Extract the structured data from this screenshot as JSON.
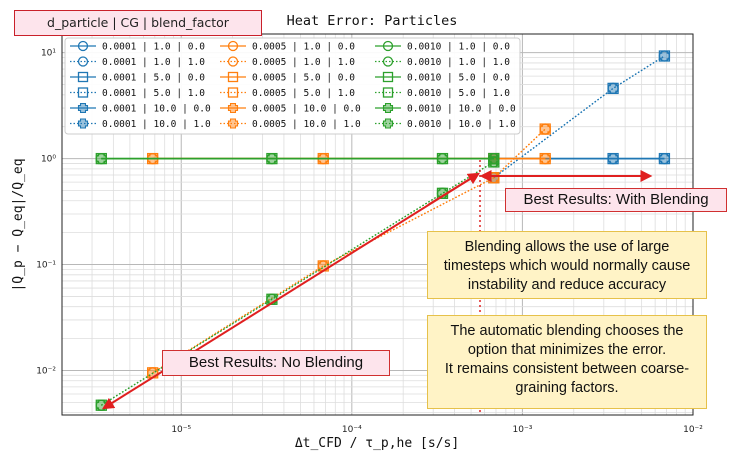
{
  "chart_data": {
    "type": "scatter",
    "title": "Heat Error: Particles",
    "xlabel": "Δt_CFD / τ_p,he  [s/s]",
    "ylabel": "|Q_p − Q_eq|/Q_eq",
    "xscale": "log",
    "yscale": "log",
    "xlim": [
      2e-06,
      0.01
    ],
    "ylim": [
      0.0038,
      15
    ],
    "x_ticks": [
      "10⁻⁵",
      "10⁻⁴",
      "10⁻³",
      "10⁻²"
    ],
    "y_ticks": [
      "10¹",
      "10⁰",
      "10⁻¹",
      "10⁻²"
    ],
    "grid": true,
    "legend_title": "d_particle | CG | blend_factor",
    "legend_placement": "top-left",
    "colors": {
      "d0001": "#1f77b4",
      "d0005": "#ff7f0e",
      "d0010": "#2ca02c"
    },
    "x": [
      3.4e-06,
      6.8e-06,
      3.4e-05,
      6.8e-05,
      0.00034,
      0.00068,
      0.0034,
      0.0068
    ],
    "series": [
      {
        "name": "0.0001 | 1.0 | 0.0",
        "color": "#1f77b4",
        "marker": "circle",
        "line": "solid",
        "x": [
          0.00068,
          0.0034,
          0.0068
        ],
        "values": [
          1,
          1,
          1
        ]
      },
      {
        "name": "0.0001 | 1.0 | 1.0",
        "color": "#1f77b4",
        "marker": "circle",
        "line": "dotted",
        "x": [
          0.00068,
          0.0034,
          0.0068
        ],
        "values": [
          0.66,
          4.6,
          9.3
        ]
      },
      {
        "name": "0.0001 | 5.0 | 0.0",
        "color": "#1f77b4",
        "marker": "square",
        "line": "solid",
        "x": [
          0.00068,
          0.0034,
          0.0068
        ],
        "values": [
          1,
          1,
          1
        ]
      },
      {
        "name": "0.0001 | 5.0 | 1.0",
        "color": "#1f77b4",
        "marker": "square",
        "line": "dotted",
        "x": [
          0.00068,
          0.0034,
          0.0068
        ],
        "values": [
          0.66,
          4.6,
          9.3
        ]
      },
      {
        "name": "0.0001 | 10.0 | 0.0",
        "color": "#1f77b4",
        "marker": "plus",
        "line": "solid",
        "x": [
          0.00068,
          0.0034,
          0.0068
        ],
        "values": [
          1,
          1,
          1
        ]
      },
      {
        "name": "0.0001 | 10.0 | 1.0",
        "color": "#1f77b4",
        "marker": "plus",
        "line": "dotted",
        "x": [
          0.00068,
          0.0034,
          0.0068
        ],
        "values": [
          0.66,
          4.6,
          9.3
        ]
      },
      {
        "name": "0.0005 | 1.0 | 0.0",
        "color": "#ff7f0e",
        "marker": "circle",
        "line": "solid",
        "x": [
          6.8e-06,
          6.8e-05,
          0.00068,
          0.00136
        ],
        "values": [
          1,
          1,
          1,
          1
        ]
      },
      {
        "name": "0.0005 | 1.0 | 1.0",
        "color": "#ff7f0e",
        "marker": "circle",
        "line": "dotted",
        "x": [
          6.8e-06,
          6.8e-05,
          0.00068,
          0.00136
        ],
        "values": [
          0.0095,
          0.097,
          0.66,
          1.9
        ]
      },
      {
        "name": "0.0005 | 5.0 | 0.0",
        "color": "#ff7f0e",
        "marker": "square",
        "line": "solid",
        "x": [
          6.8e-06,
          6.8e-05,
          0.00068,
          0.00136
        ],
        "values": [
          1,
          1,
          1,
          1
        ]
      },
      {
        "name": "0.0005 | 5.0 | 1.0",
        "color": "#ff7f0e",
        "marker": "square",
        "line": "dotted",
        "x": [
          6.8e-06,
          6.8e-05,
          0.00068,
          0.00136
        ],
        "values": [
          0.0095,
          0.097,
          0.66,
          1.9
        ]
      },
      {
        "name": "0.0005 | 10.0 | 0.0",
        "color": "#ff7f0e",
        "marker": "plus",
        "line": "solid",
        "x": [
          6.8e-06,
          6.8e-05,
          0.00068,
          0.00136
        ],
        "values": [
          1,
          1,
          1,
          1
        ]
      },
      {
        "name": "0.0005 | 10.0 | 1.0",
        "color": "#ff7f0e",
        "marker": "plus",
        "line": "dotted",
        "x": [
          6.8e-06,
          6.8e-05,
          0.00068,
          0.00136
        ],
        "values": [
          0.0095,
          0.097,
          0.66,
          1.9
        ]
      },
      {
        "name": "0.0010 | 1.0 | 0.0",
        "color": "#2ca02c",
        "marker": "circle",
        "line": "solid",
        "x": [
          3.4e-06,
          3.4e-05,
          0.00034,
          0.00068
        ],
        "values": [
          1,
          1,
          1,
          1
        ]
      },
      {
        "name": "0.0010 | 1.0 | 1.0",
        "color": "#2ca02c",
        "marker": "circle",
        "line": "dotted",
        "x": [
          3.4e-06,
          3.4e-05,
          0.00034,
          0.00068
        ],
        "values": [
          0.0047,
          0.047,
          0.47,
          0.93
        ]
      },
      {
        "name": "0.0010 | 5.0 | 0.0",
        "color": "#2ca02c",
        "marker": "square",
        "line": "solid",
        "x": [
          3.4e-06,
          3.4e-05,
          0.00034,
          0.00068
        ],
        "values": [
          1,
          1,
          1,
          1
        ]
      },
      {
        "name": "0.0010 | 5.0 | 1.0",
        "color": "#2ca02c",
        "marker": "square",
        "line": "dotted",
        "x": [
          3.4e-06,
          3.4e-05,
          0.00034,
          0.00068
        ],
        "values": [
          0.0047,
          0.047,
          0.47,
          0.93
        ]
      },
      {
        "name": "0.0010 | 10.0 | 0.0",
        "color": "#2ca02c",
        "marker": "plus",
        "line": "solid",
        "x": [
          3.4e-06,
          3.4e-05,
          0.00034,
          0.00068
        ],
        "values": [
          1,
          1,
          1,
          1
        ]
      },
      {
        "name": "0.0010 | 10.0 | 1.0",
        "color": "#2ca02c",
        "marker": "plus",
        "line": "dotted",
        "x": [
          3.4e-06,
          3.4e-05,
          0.00034,
          0.00068
        ],
        "values": [
          0.0047,
          0.047,
          0.47,
          0.93
        ]
      }
    ],
    "annotations": {
      "with_blending": "Best Results: With Blending",
      "no_blending": "Best Results: No Blending",
      "blending_note": [
        "Blending allows the use of large",
        "timesteps which would normally cause",
        "instability and reduce accuracy"
      ],
      "auto_note": [
        "The automatic blending chooses the",
        "option that minimizes the error.",
        "It remains consistent between coarse-",
        "graining factors."
      ]
    }
  }
}
